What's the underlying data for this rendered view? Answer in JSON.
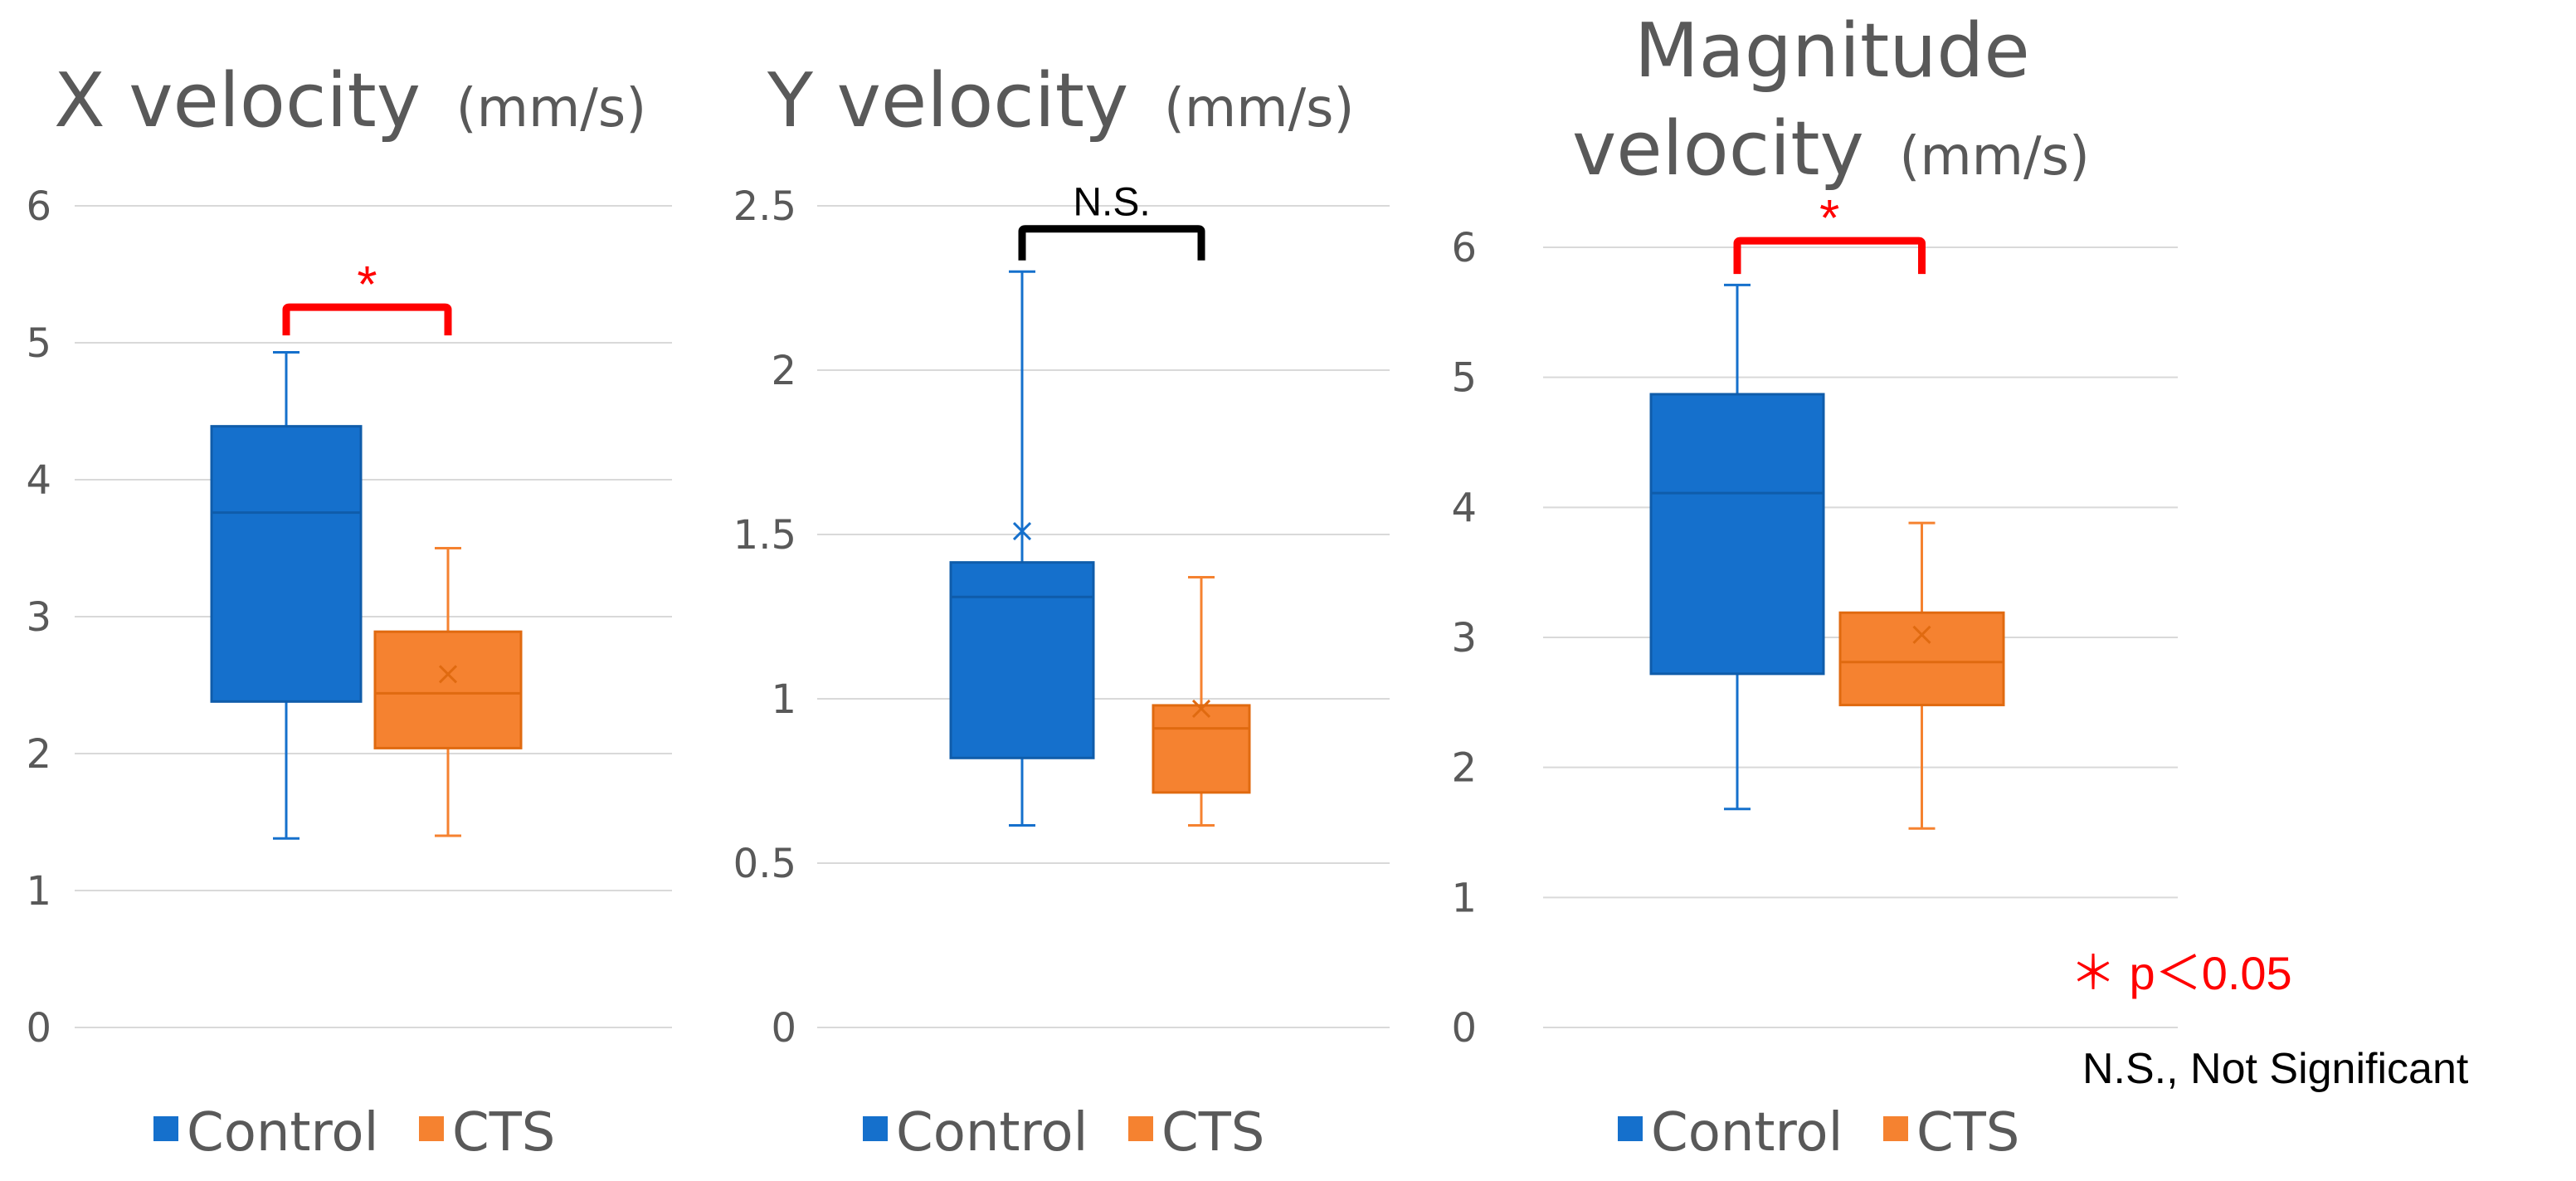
{
  "colors": {
    "control": "#1570CC",
    "control_edge": "#0F5CAA",
    "cts": "#F58230",
    "cts_edge": "#E06A10",
    "grid": "#D9D9D9",
    "significant": "#FF0000",
    "not_significant": "#000000",
    "text": "#595959"
  },
  "chart_data": [
    {
      "type": "box",
      "title": "X velocity",
      "unit": "(mm/s)",
      "ylim": [
        0,
        6
      ],
      "yticks": [
        "0",
        "1",
        "2",
        "3",
        "4",
        "5",
        "6"
      ],
      "series": [
        {
          "name": "Control",
          "min": 1.38,
          "q1": 2.38,
          "median": 3.76,
          "q3": 4.39,
          "max": 4.93,
          "mean": 4.07
        },
        {
          "name": "CTS",
          "min": 1.4,
          "q1": 2.04,
          "median": 2.44,
          "q3": 2.89,
          "max": 3.5,
          "mean": 2.58
        }
      ],
      "significance": {
        "label": "*",
        "type": "significant",
        "level": 5.26
      },
      "legend": [
        "Control",
        "CTS"
      ]
    },
    {
      "type": "box",
      "title": "Y velocity",
      "unit": "(mm/s)",
      "ylim": [
        0,
        2.5
      ],
      "yticks": [
        "0",
        "0.5",
        "1",
        "1.5",
        "2",
        "2.5"
      ],
      "series": [
        {
          "name": "Control",
          "min": 0.615,
          "q1": 0.82,
          "median": 1.31,
          "q3": 1.415,
          "max": 2.3,
          "mean": 1.51
        },
        {
          "name": "CTS",
          "min": 0.615,
          "q1": 0.715,
          "median": 0.91,
          "q3": 0.98,
          "max": 1.37,
          "mean": 0.97
        }
      ],
      "significance": {
        "label": "N.S.",
        "type": "not_significant",
        "level": 2.43
      },
      "legend": [
        "Control",
        "CTS"
      ]
    },
    {
      "type": "box",
      "title": "Magnitude velocity",
      "title_lines": [
        "Magnitude",
        "velocity"
      ],
      "unit": "(mm/s)",
      "ylim": [
        0,
        6
      ],
      "yticks": [
        "0",
        "1",
        "2",
        "3",
        "4",
        "5",
        "6"
      ],
      "series": [
        {
          "name": "Control",
          "min": 1.68,
          "q1": 2.72,
          "median": 4.11,
          "q3": 4.87,
          "max": 5.71,
          "mean": 4.59
        },
        {
          "name": "CTS",
          "min": 1.53,
          "q1": 2.48,
          "median": 2.81,
          "q3": 3.19,
          "max": 3.88,
          "mean": 3.02
        }
      ],
      "significance": {
        "label": "*",
        "type": "significant",
        "level": 6.05
      },
      "legend": [
        "Control",
        "CTS"
      ]
    }
  ],
  "notes": {
    "p_value": "＊ p＜0.05",
    "ns": "N.S., Not Significant"
  }
}
